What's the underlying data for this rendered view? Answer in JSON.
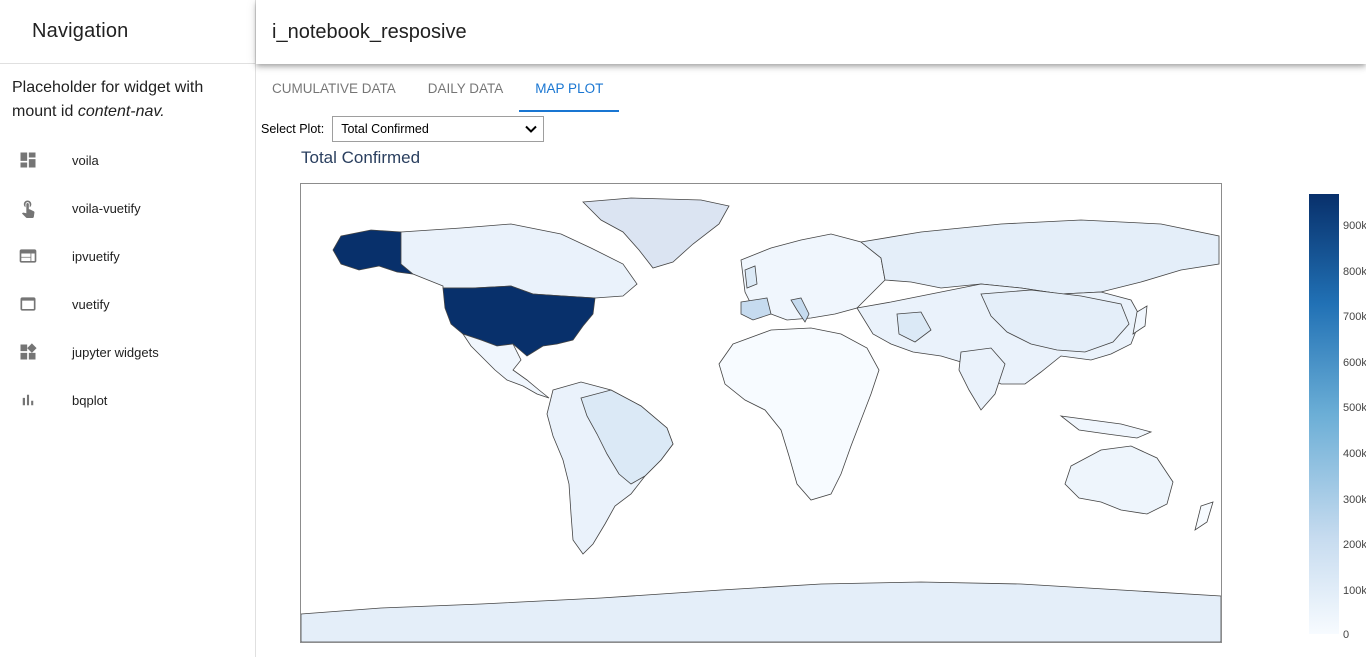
{
  "sidebar": {
    "title": "Navigation",
    "placeholder_text": "Placeholder for widget with mount id ",
    "placeholder_mount_id": "content-nav.",
    "items": [
      {
        "label": "voila",
        "icon": "dashboard-icon"
      },
      {
        "label": "voila-vuetify",
        "icon": "touch-app-icon"
      },
      {
        "label": "ipvuetify",
        "icon": "web-icon"
      },
      {
        "label": "vuetify",
        "icon": "web-asset-icon"
      },
      {
        "label": "jupyter widgets",
        "icon": "widgets-icon"
      },
      {
        "label": "bqplot",
        "icon": "bar-chart-icon"
      }
    ]
  },
  "appbar": {
    "title": "i_notebook_resposive"
  },
  "tabs": [
    {
      "label": "CUMULATIVE DATA",
      "active": false
    },
    {
      "label": "DAILY DATA",
      "active": false
    },
    {
      "label": "MAP PLOT",
      "active": true
    }
  ],
  "plot_selector": {
    "label": "Select Plot:",
    "value": "Total Confirmed"
  },
  "chart_data": {
    "type": "choropleth",
    "title": "Total Confirmed",
    "colorscale": "Blues",
    "colorbar_ticks": [
      "900k",
      "800k",
      "700k",
      "600k",
      "500k",
      "400k",
      "300k",
      "200k",
      "100k",
      "0"
    ],
    "colorbar_range": [
      0,
      960000
    ],
    "regions_highlighted": [
      {
        "name": "United States",
        "color": "#08306b"
      },
      {
        "name": "Spain",
        "color": "#c6dbef"
      },
      {
        "name": "Italy",
        "color": "#c6dbef"
      }
    ]
  }
}
